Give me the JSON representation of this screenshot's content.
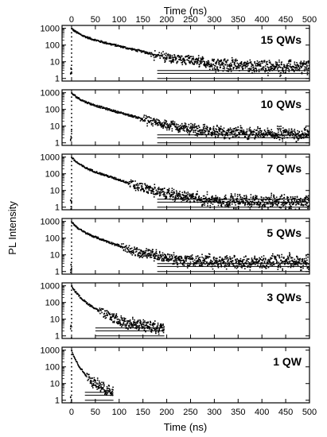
{
  "chart_data": {
    "type": "scatter",
    "xlabel": "Time (ns)",
    "ylabel": "PL Intensity",
    "xlim": [
      -20,
      500
    ],
    "ylim": [
      0.7,
      1500
    ],
    "yscale": "log",
    "x_ticks": [
      0,
      50,
      100,
      150,
      200,
      250,
      300,
      350,
      400,
      450,
      500
    ],
    "y_ticks": [
      1,
      10,
      100,
      1000
    ],
    "grid": false,
    "legend": "none",
    "marker_color": "#000000",
    "panels": [
      {
        "label": "15 QWs",
        "peak": 950,
        "tau_fast": 12,
        "tau_slow": 60,
        "frac_fast": 0.55,
        "background": 4.5,
        "x_end": 500
      },
      {
        "label": "10 QWs",
        "peak": 950,
        "tau_fast": 11,
        "tau_slow": 52,
        "frac_fast": 0.55,
        "background": 3.0,
        "x_end": 500
      },
      {
        "label": "7 QWs",
        "peak": 950,
        "tau_fast": 10,
        "tau_slow": 45,
        "frac_fast": 0.6,
        "background": 2.0,
        "x_end": 500
      },
      {
        "label": "5 QWs",
        "peak": 950,
        "tau_fast": 9,
        "tau_slow": 40,
        "frac_fast": 0.6,
        "background": 3.5,
        "x_end": 500
      },
      {
        "label": "3 QWs",
        "peak": 950,
        "tau_fast": 8,
        "tau_slow": 25,
        "frac_fast": 0.7,
        "background": 3.0,
        "x_end": 195
      },
      {
        "label": "1 QW",
        "peak": 950,
        "tau_fast": 5,
        "tau_slow": 14,
        "frac_fast": 0.75,
        "background": 3.0,
        "x_end": 88
      }
    ]
  }
}
